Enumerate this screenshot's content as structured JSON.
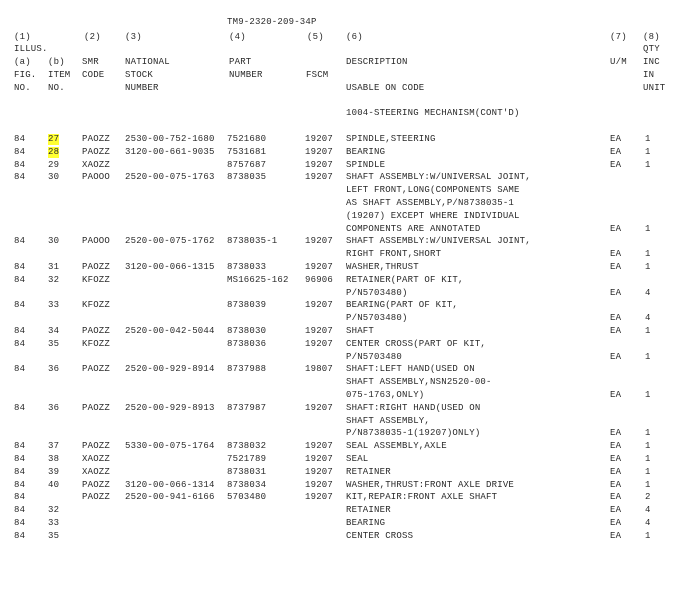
{
  "doc_id": "TM9-2320-209-34P",
  "headers": {
    "col1": {
      "num": "(1)",
      "label": "ILLUS."
    },
    "col1a": {
      "num": "(a)",
      "l1": "FIG.",
      "l2": "NO."
    },
    "col1b": {
      "num": "(b)",
      "l1": "ITEM",
      "l2": "NO."
    },
    "col2": {
      "num": "(2)",
      "l1": "SMR",
      "l2": "CODE"
    },
    "col3": {
      "num": "(3)",
      "l1": "NATIONAL",
      "l2": "STOCK",
      "l3": "NUMBER"
    },
    "col4": {
      "num": "(4)",
      "l1": "PART",
      "l2": "NUMBER"
    },
    "col5": {
      "num": "(5)",
      "l1": "FSCM"
    },
    "col6": {
      "num": "(6)",
      "l1": "DESCRIPTION",
      "l2": "USABLE ON CODE"
    },
    "col7": {
      "num": "(7)",
      "l1": "U/M"
    },
    "col8": {
      "num": "(8)",
      "l1": "QTY",
      "l2": "INC",
      "l3": "IN",
      "l4": "UNIT"
    }
  },
  "section_title": "1004-STEERING MECHANISM(CONT'D)",
  "highlight_color": "#ffff33",
  "rows": [
    {
      "fig": "84",
      "item": "27",
      "smr": "PAOZZ",
      "nsn": "2530-00-752-1680",
      "part": "7521680",
      "fscm": "19207",
      "desc": [
        "SPINDLE,STEERING"
      ],
      "um": "EA",
      "qty": "1",
      "highlight": true
    },
    {
      "fig": "84",
      "item": "28",
      "smr": "PAOZZ",
      "nsn": "3120-00-661-9035",
      "part": "7531681",
      "fscm": "19207",
      "desc": [
        "BEARING"
      ],
      "um": "EA",
      "qty": "1",
      "highlight": true
    },
    {
      "fig": "84",
      "item": "29",
      "smr": "XAOZZ",
      "nsn": "",
      "part": "8757687",
      "fscm": "19207",
      "desc": [
        "SPINDLE"
      ],
      "um": "EA",
      "qty": "1"
    },
    {
      "fig": "84",
      "item": "30",
      "smr": "PAOOO",
      "nsn": "2520-00-075-1763",
      "part": "8738035",
      "fscm": "19207",
      "desc": [
        "SHAFT ASSEMBLY:W/UNIVERSAL JOINT,",
        "LEFT FRONT,LONG(COMPONENTS SAME",
        "AS SHAFT ASSEMBLY,P/N8738035-1",
        "(19207) EXCEPT WHERE INDIVIDUAL",
        "COMPONENTS ARE ANNOTATED"
      ],
      "um": "EA",
      "qty": "1"
    },
    {
      "fig": "84",
      "item": "30",
      "smr": "PAOOO",
      "nsn": "2520-00-075-1762",
      "part": "8738035-1",
      "fscm": "19207",
      "desc": [
        "SHAFT ASSEMBLY:W/UNIVERSAL JOINT,",
        "RIGHT FRONT,SHORT"
      ],
      "um": "EA",
      "qty": "1"
    },
    {
      "fig": "84",
      "item": "31",
      "smr": "PAOZZ",
      "nsn": "3120-00-066-1315",
      "part": "8738033",
      "fscm": "19207",
      "desc": [
        "WASHER,THRUST"
      ],
      "um": "EA",
      "qty": "1"
    },
    {
      "fig": "84",
      "item": "32",
      "smr": "KFOZZ",
      "nsn": "",
      "part": "MS16625-162",
      "fscm": "96906",
      "desc": [
        "RETAINER(PART OF KIT,",
        "P/N5703480)"
      ],
      "um": "EA",
      "qty": "4"
    },
    {
      "fig": "84",
      "item": "33",
      "smr": "KFOZZ",
      "nsn": "",
      "part": "8738039",
      "fscm": "19207",
      "desc": [
        "BEARING(PART OF KIT,",
        "P/N5703480)"
      ],
      "um": "EA",
      "qty": "4"
    },
    {
      "fig": "84",
      "item": "34",
      "smr": "PAOZZ",
      "nsn": "2520-00-042-5044",
      "part": "8738030",
      "fscm": "19207",
      "desc": [
        "SHAFT"
      ],
      "um": "EA",
      "qty": "1"
    },
    {
      "fig": "84",
      "item": "35",
      "smr": "KFOZZ",
      "nsn": "",
      "part": "8738036",
      "fscm": "19207",
      "desc": [
        "CENTER CROSS(PART OF KIT,",
        "P/N5703480"
      ],
      "um": "EA",
      "qty": "1"
    },
    {
      "fig": "84",
      "item": "36",
      "smr": "PAOZZ",
      "nsn": "2520-00-929-8914",
      "part": "8737988",
      "fscm": "19807",
      "desc": [
        "SHAFT:LEFT HAND(USED ON",
        "SHAFT ASSEMBLY,NSN2520-00-",
        "075-1763,ONLY)"
      ],
      "um": "EA",
      "qty": "1"
    },
    {
      "fig": "84",
      "item": "36",
      "smr": "PAOZZ",
      "nsn": "2520-00-929-8913",
      "part": "8737987",
      "fscm": "19207",
      "desc": [
        "SHAFT:RIGHT HAND(USED ON",
        "SHAFT ASSEMBLY,",
        "P/N8738035-1(19207)ONLY)"
      ],
      "um": "EA",
      "qty": "1"
    },
    {
      "fig": "84",
      "item": "37",
      "smr": "PAOZZ",
      "nsn": "5330-00-075-1764",
      "part": "8738032",
      "fscm": "19207",
      "desc": [
        "SEAL ASSEMBLY,AXLE"
      ],
      "um": "EA",
      "qty": "1"
    },
    {
      "fig": "84",
      "item": "38",
      "smr": "XAOZZ",
      "nsn": "",
      "part": "7521789",
      "fscm": "19207",
      "desc": [
        "SEAL"
      ],
      "um": "EA",
      "qty": "1"
    },
    {
      "fig": "84",
      "item": "39",
      "smr": "XAOZZ",
      "nsn": "",
      "part": "8738031",
      "fscm": "19207",
      "desc": [
        "RETAINER"
      ],
      "um": "EA",
      "qty": "1"
    },
    {
      "fig": "84",
      "item": "40",
      "smr": "PAOZZ",
      "nsn": "3120-00-066-1314",
      "part": "8738034",
      "fscm": "19207",
      "desc": [
        "WASHER,THRUST:FRONT AXLE DRIVE"
      ],
      "um": "EA",
      "qty": "1"
    },
    {
      "fig": "84",
      "item": "",
      "smr": "PAOZZ",
      "nsn": "2520-00-941-6166",
      "part": "5703480",
      "fscm": "19207",
      "desc": [
        "KIT,REPAIR:FRONT AXLE SHAFT"
      ],
      "um": "EA",
      "qty": "2"
    },
    {
      "fig": "84",
      "item": "32",
      "smr": "",
      "nsn": "",
      "part": "",
      "fscm": "",
      "desc": [
        "RETAINER"
      ],
      "um": "EA",
      "qty": "4"
    },
    {
      "fig": "84",
      "item": "33",
      "smr": "",
      "nsn": "",
      "part": "",
      "fscm": "",
      "desc": [
        "BEARING"
      ],
      "um": "EA",
      "qty": "4"
    },
    {
      "fig": "84",
      "item": "35",
      "smr": "",
      "nsn": "",
      "part": "",
      "fscm": "",
      "desc": [
        "CENTER CROSS"
      ],
      "um": "EA",
      "qty": "1"
    }
  ]
}
